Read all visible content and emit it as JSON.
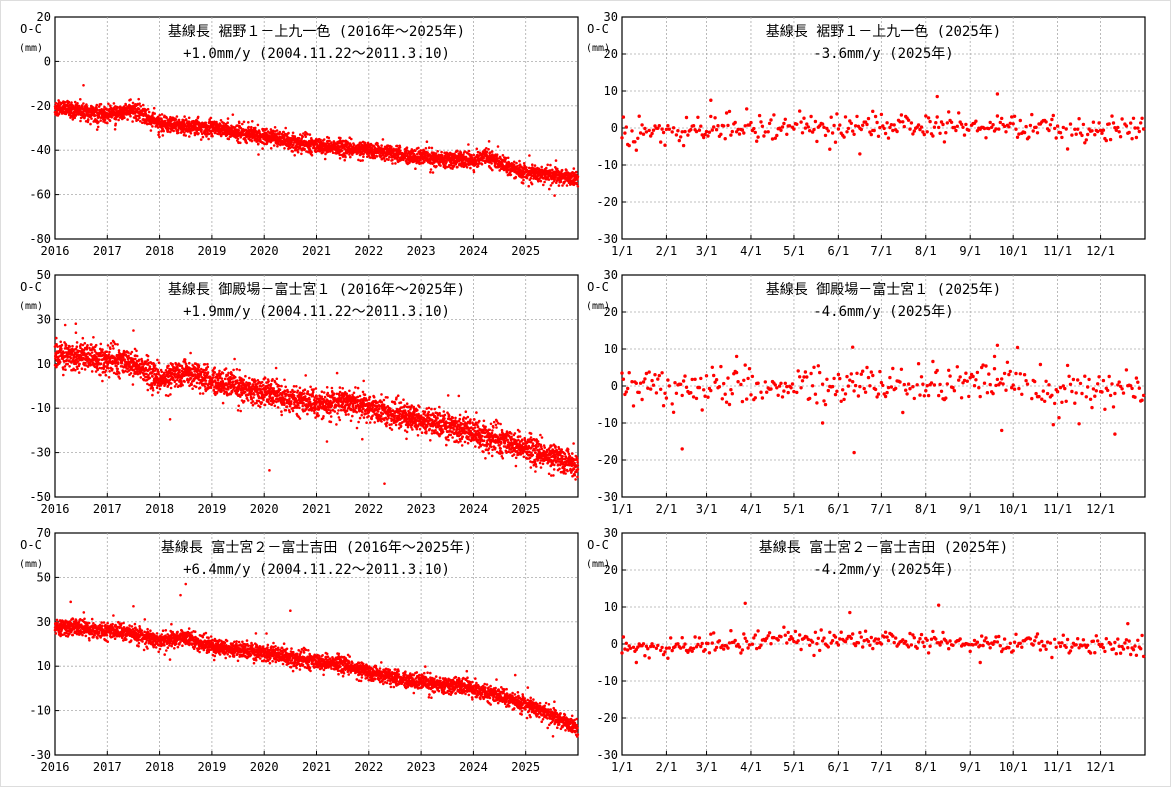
{
  "colors": {
    "points": "#ff0000",
    "frame": "#000000",
    "grid": "#aaaaaa"
  },
  "chart_data": [
    {
      "type": "scatter",
      "title": "基線長 裾野１－上九一色 (2016年～2025年)",
      "subtitle": "+1.0mm/y (2004.11.22～2011.3.10)",
      "ylabel": "O-C",
      "yunit": "(mm)",
      "xlim": [
        2016,
        2026
      ],
      "ylim": [
        -80,
        20
      ],
      "xticks": [
        2016,
        2017,
        2018,
        2019,
        2020,
        2021,
        2022,
        2023,
        2024,
        2025
      ],
      "xtick_labels": [
        "2016",
        "2017",
        "2018",
        "2019",
        "2020",
        "2021",
        "2022",
        "2023",
        "2024",
        "2025"
      ],
      "yticks": [
        20,
        0,
        -20,
        -40,
        -60,
        -80
      ],
      "ytick_labels": [
        "20",
        "0",
        "-20",
        "-40",
        "-60",
        "-80"
      ],
      "grid": true,
      "series": [
        {
          "name": "O-C",
          "sampling": "daily",
          "trend": [
            [
              2016,
              -21
            ],
            [
              2017,
              -24
            ],
            [
              2017.5,
              -22
            ],
            [
              2018,
              -28
            ],
            [
              2019,
              -30
            ],
            [
              2020,
              -34
            ],
            [
              2021,
              -38
            ],
            [
              2022,
              -40
            ],
            [
              2023,
              -43
            ],
            [
              2024,
              -45
            ],
            [
              2024.2,
              -42
            ],
            [
              2024.6,
              -47
            ],
            [
              2025,
              -50
            ],
            [
              2026,
              -53
            ]
          ],
          "noise_sd": 1.8,
          "outliers": [
            [
              2017.6,
              -17
            ],
            [
              2024.3,
              -36
            ],
            [
              2019.4,
              -24
            ]
          ]
        }
      ]
    },
    {
      "type": "scatter",
      "title": "基線長 裾野１－上九一色 (2025年)",
      "subtitle": "-3.6mm/y (2025年)",
      "ylabel": "O-C",
      "yunit": "(mm)",
      "xlim": [
        0,
        365
      ],
      "ylim": [
        -30,
        30
      ],
      "xticks": [
        0,
        31,
        59,
        90,
        120,
        151,
        181,
        212,
        243,
        273,
        304,
        334
      ],
      "xtick_labels": [
        "1/1",
        "2/1",
        "3/1",
        "4/1",
        "5/1",
        "6/1",
        "7/1",
        "8/1",
        "9/1",
        "10/1",
        "11/1",
        "12/1"
      ],
      "yticks": [
        30,
        20,
        10,
        0,
        -10,
        -20,
        -30
      ],
      "ytick_labels": [
        "30",
        "20",
        "10",
        "0",
        "-10",
        "-20",
        "-30"
      ],
      "grid": true,
      "series": [
        {
          "name": "O-C",
          "sampling": "daily",
          "trend": [
            [
              0,
              -1
            ],
            [
              60,
              0
            ],
            [
              180,
              0.5
            ],
            [
              270,
              1
            ],
            [
              320,
              -1
            ],
            [
              365,
              0
            ]
          ],
          "noise_sd": 1.8,
          "outliers": [
            [
              62,
              7.5
            ],
            [
              220,
              8.5
            ],
            [
              262,
              9.2
            ],
            [
              166,
              -7
            ],
            [
              10,
              -6
            ],
            [
              175,
              4.5
            ]
          ]
        }
      ]
    },
    {
      "type": "scatter",
      "title": "基線長 御殿場－富士宮１ (2016年～2025年)",
      "subtitle": "+1.9mm/y (2004.11.22～2011.3.10)",
      "ylabel": "O-C",
      "yunit": "(mm)",
      "xlim": [
        2016,
        2026
      ],
      "ylim": [
        -50,
        50
      ],
      "xticks": [
        2016,
        2017,
        2018,
        2019,
        2020,
        2021,
        2022,
        2023,
        2024,
        2025
      ],
      "xtick_labels": [
        "2016",
        "2017",
        "2018",
        "2019",
        "2020",
        "2021",
        "2022",
        "2023",
        "2024",
        "2025"
      ],
      "yticks": [
        50,
        30,
        10,
        -10,
        -30,
        -50
      ],
      "ytick_labels": [
        "50",
        "30",
        "10",
        "-10",
        "-30",
        "-50"
      ],
      "grid": true,
      "series": [
        {
          "name": "O-C",
          "sampling": "daily",
          "trend": [
            [
              2016,
              14
            ],
            [
              2017,
              12
            ],
            [
              2017.5,
              10
            ],
            [
              2018,
              3
            ],
            [
              2018.5,
              6
            ],
            [
              2019,
              3
            ],
            [
              2020,
              -3
            ],
            [
              2021,
              -8
            ],
            [
              2021.5,
              -7
            ],
            [
              2022,
              -10
            ],
            [
              2023,
              -15
            ],
            [
              2024,
              -21
            ],
            [
              2025,
              -28
            ],
            [
              2026,
              -36
            ]
          ],
          "noise_sd": 3.0,
          "outliers": [
            [
              2017.5,
              25
            ],
            [
              2016.4,
              24
            ],
            [
              2020.1,
              -38
            ],
            [
              2022.3,
              -44
            ],
            [
              2018.2,
              -15
            ],
            [
              2021.2,
              -25
            ]
          ]
        }
      ]
    },
    {
      "type": "scatter",
      "title": "基線長 御殿場－富士宮１ (2025年)",
      "subtitle": "-4.6mm/y (2025年)",
      "ylabel": "O-C",
      "yunit": "(mm)",
      "xlim": [
        0,
        365
      ],
      "ylim": [
        -30,
        30
      ],
      "xticks": [
        0,
        31,
        59,
        90,
        120,
        151,
        181,
        212,
        243,
        273,
        304,
        334
      ],
      "xtick_labels": [
        "1/1",
        "2/1",
        "3/1",
        "4/1",
        "5/1",
        "6/1",
        "7/1",
        "8/1",
        "9/1",
        "10/1",
        "11/1",
        "12/1"
      ],
      "yticks": [
        30,
        20,
        10,
        0,
        -10,
        -20,
        -30
      ],
      "ytick_labels": [
        "30",
        "20",
        "10",
        "0",
        "-10",
        "-20",
        "-30"
      ],
      "grid": true,
      "series": [
        {
          "name": "O-C",
          "sampling": "daily",
          "trend": [
            [
              0,
              -1
            ],
            [
              60,
              0
            ],
            [
              180,
              1
            ],
            [
              260,
              1
            ],
            [
              300,
              -1
            ],
            [
              365,
              0
            ]
          ],
          "noise_sd": 2.6,
          "outliers": [
            [
              161,
              10.5
            ],
            [
              162,
              -18
            ],
            [
              42,
              -17
            ],
            [
              262,
              11
            ],
            [
              265,
              -12
            ],
            [
              344,
              -13
            ],
            [
              260,
              8
            ],
            [
              80,
              8
            ],
            [
              140,
              -10
            ]
          ]
        }
      ]
    },
    {
      "type": "scatter",
      "title": "基線長 富士宮２－富士吉田 (2016年～2025年)",
      "subtitle": "+6.4mm/y (2004.11.22～2011.3.10)",
      "ylabel": "O-C",
      "yunit": "(mm)",
      "xlim": [
        2016,
        2026
      ],
      "ylim": [
        -30,
        70
      ],
      "xticks": [
        2016,
        2017,
        2018,
        2019,
        2020,
        2021,
        2022,
        2023,
        2024,
        2025
      ],
      "xtick_labels": [
        "2016",
        "2017",
        "2018",
        "2019",
        "2020",
        "2021",
        "2022",
        "2023",
        "2024",
        "2025"
      ],
      "yticks": [
        70,
        50,
        30,
        10,
        -10,
        -30
      ],
      "ytick_labels": [
        "70",
        "50",
        "30",
        "10",
        "-10",
        "-30"
      ],
      "grid": true,
      "series": [
        {
          "name": "O-C",
          "sampling": "daily",
          "trend": [
            [
              2016,
              28
            ],
            [
              2017,
              26
            ],
            [
              2017.5,
              25
            ],
            [
              2018,
              21
            ],
            [
              2018.5,
              23
            ],
            [
              2019,
              19
            ],
            [
              2020,
              16
            ],
            [
              2021,
              12
            ],
            [
              2021.5,
              11
            ],
            [
              2022,
              7
            ],
            [
              2023,
              3
            ],
            [
              2024,
              0
            ],
            [
              2025,
              -7
            ],
            [
              2026,
              -18
            ]
          ],
          "noise_sd": 1.8,
          "outliers": [
            [
              2018.5,
              47
            ],
            [
              2020.5,
              35
            ],
            [
              2016.3,
              39
            ],
            [
              2018.4,
              42
            ],
            [
              2017.5,
              37
            ],
            [
              2024.8,
              6
            ]
          ]
        }
      ]
    },
    {
      "type": "scatter",
      "title": "基線長 富士宮２－富士吉田 (2025年)",
      "subtitle": "-4.2mm/y (2025年)",
      "ylabel": "O-C",
      "yunit": "(mm)",
      "xlim": [
        0,
        365
      ],
      "ylim": [
        -30,
        30
      ],
      "xticks": [
        0,
        31,
        59,
        90,
        120,
        151,
        181,
        212,
        243,
        273,
        304,
        334
      ],
      "xtick_labels": [
        "1/1",
        "2/1",
        "3/1",
        "4/1",
        "5/1",
        "6/1",
        "7/1",
        "8/1",
        "9/1",
        "10/1",
        "11/1",
        "12/1"
      ],
      "yticks": [
        30,
        20,
        10,
        0,
        -10,
        -20,
        -30
      ],
      "ytick_labels": [
        "30",
        "20",
        "10",
        "0",
        "-10",
        "-20",
        "-30"
      ],
      "grid": true,
      "series": [
        {
          "name": "O-C",
          "sampling": "daily",
          "trend": [
            [
              0,
              -1
            ],
            [
              80,
              0
            ],
            [
              100,
              1.5
            ],
            [
              200,
              1
            ],
            [
              300,
              0
            ],
            [
              365,
              -1
            ]
          ],
          "noise_sd": 1.3,
          "outliers": [
            [
              86,
              11
            ],
            [
              221,
              10.5
            ],
            [
              159,
              8.5
            ],
            [
              353,
              5.5
            ],
            [
              10,
              -5
            ],
            [
              250,
              -5
            ]
          ]
        }
      ]
    }
  ]
}
